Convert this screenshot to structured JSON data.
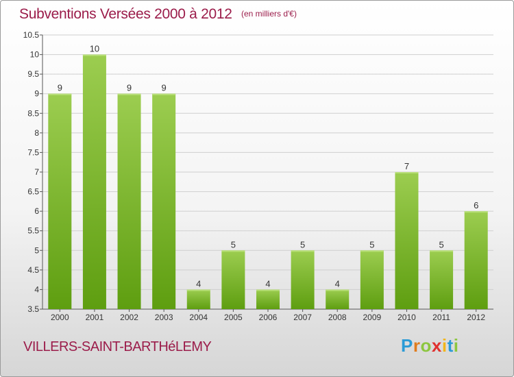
{
  "header": {
    "title": "Subventions Versées 2000 à 2012",
    "unit_note": "(en milliers d'€)"
  },
  "footer": {
    "commune": "VILLERS-SAINT-BARTHéLEMY",
    "logo_letters": [
      "P",
      "r",
      "o",
      "x",
      "i",
      "t",
      "i"
    ]
  },
  "colors": {
    "bar_top": "#9ccd50",
    "bar_bottom": "#5e9e10",
    "title": "#9b1c4a",
    "grid": "#cfcfcf"
  },
  "chart_data": {
    "type": "bar",
    "categories": [
      "2000",
      "2001",
      "2002",
      "2003",
      "2004",
      "2005",
      "2006",
      "2007",
      "2008",
      "2009",
      "2010",
      "2011",
      "2012"
    ],
    "values": [
      9,
      10,
      9,
      9,
      4,
      5,
      4,
      5,
      4,
      5,
      7,
      5,
      6
    ],
    "data_labels": [
      "9",
      "10",
      "9",
      "9",
      "4",
      "5",
      "4",
      "5",
      "4",
      "5",
      "7",
      "5",
      "6"
    ],
    "title": "Subventions Versées 2000 à 2012",
    "ylim": [
      3.5,
      10.5
    ],
    "yticks": [
      "3.5",
      "4",
      "4.5",
      "5",
      "5.5",
      "6",
      "6.5",
      "7",
      "7.5",
      "8",
      "8.5",
      "9",
      "9.5",
      "10",
      "10.5"
    ],
    "grid": true
  }
}
